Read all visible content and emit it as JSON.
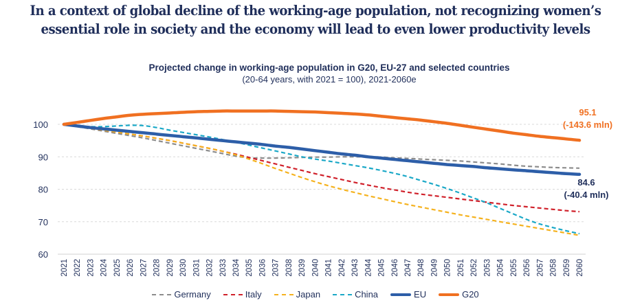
{
  "headline": {
    "line1": "In a context of global decline of the working-age population, not recognizing women’s",
    "line2": "essential role in society and the economy will lead to even lower productivity levels"
  },
  "chart_data": {
    "type": "line",
    "title": "Projected change in working-age population in G20, EU-27 and selected countries",
    "subtitle": "(20-64 years, with 2021 = 100), 2021-2060e",
    "xlabel": "",
    "ylabel": "",
    "ylim": [
      60,
      104
    ],
    "yticks": [
      "60",
      "70",
      "80",
      "90",
      "100"
    ],
    "ytick_values": [
      60,
      70,
      80,
      90,
      100
    ],
    "grid": true,
    "legend_position": "bottom",
    "x": [
      "2021",
      "2022",
      "2023",
      "2024",
      "2025",
      "2026",
      "2027",
      "2028",
      "2029",
      "2030",
      "2031",
      "2032",
      "2033",
      "2034",
      "2035",
      "2036",
      "2037",
      "2038",
      "2039",
      "2040",
      "2041",
      "2042",
      "2043",
      "2044",
      "2045",
      "2046",
      "2047",
      "2048",
      "2049",
      "2050",
      "2051",
      "2052",
      "2053",
      "2054",
      "2055",
      "2056",
      "2057",
      "2058",
      "2059",
      "2060"
    ],
    "series": [
      {
        "name": "Germany",
        "color": "#8c8c8c",
        "style": "dashed",
        "values": [
          100,
          99.3,
          98.6,
          97.9,
          97.2,
          96.5,
          95.8,
          95.0,
          94.2,
          93.4,
          92.6,
          91.8,
          91.0,
          90.2,
          89.7,
          89.6,
          89.6,
          89.7,
          89.8,
          89.9,
          89.9,
          90.0,
          90.0,
          90.0,
          89.9,
          89.7,
          89.5,
          89.3,
          89.1,
          88.9,
          88.7,
          88.4,
          88.1,
          87.8,
          87.4,
          87.1,
          86.9,
          86.7,
          86.6,
          86.5
        ]
      },
      {
        "name": "Italy",
        "color": "#d0202a",
        "style": "dashed",
        "values": [
          100,
          99.4,
          98.8,
          98.2,
          97.6,
          97.0,
          96.4,
          95.7,
          95.0,
          94.2,
          93.4,
          92.6,
          91.7,
          90.8,
          89.8,
          88.8,
          87.8,
          86.8,
          85.8,
          84.8,
          83.9,
          83.0,
          82.1,
          81.3,
          80.5,
          79.8,
          79.1,
          78.5,
          78.0,
          77.5,
          77.0,
          76.5,
          76.0,
          75.5,
          75.0,
          74.6,
          74.2,
          73.8,
          73.4,
          73.1
        ]
      },
      {
        "name": "Japan",
        "color": "#f5b21e",
        "style": "dashed",
        "values": [
          100,
          99.4,
          98.8,
          98.2,
          97.6,
          97.0,
          96.4,
          95.7,
          95.0,
          94.2,
          93.4,
          92.6,
          91.7,
          90.6,
          89.3,
          87.9,
          86.4,
          85.0,
          83.6,
          82.3,
          81.1,
          80.0,
          79.0,
          78.0,
          77.1,
          76.2,
          75.3,
          74.5,
          73.7,
          72.9,
          72.1,
          71.4,
          70.7,
          70.0,
          69.3,
          68.6,
          67.9,
          67.2,
          66.5,
          65.8
        ]
      },
      {
        "name": "China",
        "color": "#1aa8c7",
        "style": "dashed",
        "values": [
          100,
          99.6,
          99.3,
          99.3,
          99.5,
          99.7,
          99.6,
          99.0,
          98.2,
          97.5,
          96.8,
          96.1,
          95.3,
          94.5,
          93.6,
          92.7,
          91.8,
          90.9,
          90.0,
          89.3,
          88.7,
          88.0,
          87.3,
          86.6,
          85.8,
          84.9,
          83.9,
          82.7,
          81.5,
          80.2,
          78.8,
          77.3,
          75.8,
          74.1,
          72.4,
          70.7,
          69.3,
          68.2,
          67.2,
          66.3
        ]
      },
      {
        "name": "EU",
        "color": "#2d5ea8",
        "style": "solid",
        "values": [
          100,
          99.5,
          99.0,
          98.6,
          98.2,
          97.8,
          97.4,
          97.0,
          96.6,
          96.2,
          95.8,
          95.4,
          95.0,
          94.6,
          94.2,
          93.8,
          93.3,
          92.9,
          92.4,
          91.9,
          91.4,
          90.9,
          90.5,
          90.0,
          89.6,
          89.2,
          88.8,
          88.4,
          88.0,
          87.6,
          87.3,
          87.0,
          86.6,
          86.3,
          86.0,
          85.7,
          85.4,
          85.1,
          84.8,
          84.6
        ]
      },
      {
        "name": "G20",
        "color": "#f07021",
        "style": "solid",
        "values": [
          100,
          100.6,
          101.2,
          101.8,
          102.3,
          102.8,
          103.1,
          103.3,
          103.5,
          103.7,
          103.9,
          104.0,
          104.1,
          104.1,
          104.1,
          104.1,
          104.1,
          104.0,
          103.9,
          103.8,
          103.6,
          103.4,
          103.2,
          102.9,
          102.5,
          102.1,
          101.7,
          101.3,
          100.8,
          100.3,
          99.7,
          99.1,
          98.5,
          97.9,
          97.3,
          96.8,
          96.3,
          95.9,
          95.5,
          95.1
        ]
      }
    ],
    "annotations": [
      {
        "series": "G20",
        "line1": "95.1",
        "line2": "(-143.6 mln)",
        "color": "#f07021"
      },
      {
        "series": "EU",
        "line1": "84.6",
        "line2": "(-40.4 mln)",
        "color": "#1f2e5a"
      }
    ]
  }
}
